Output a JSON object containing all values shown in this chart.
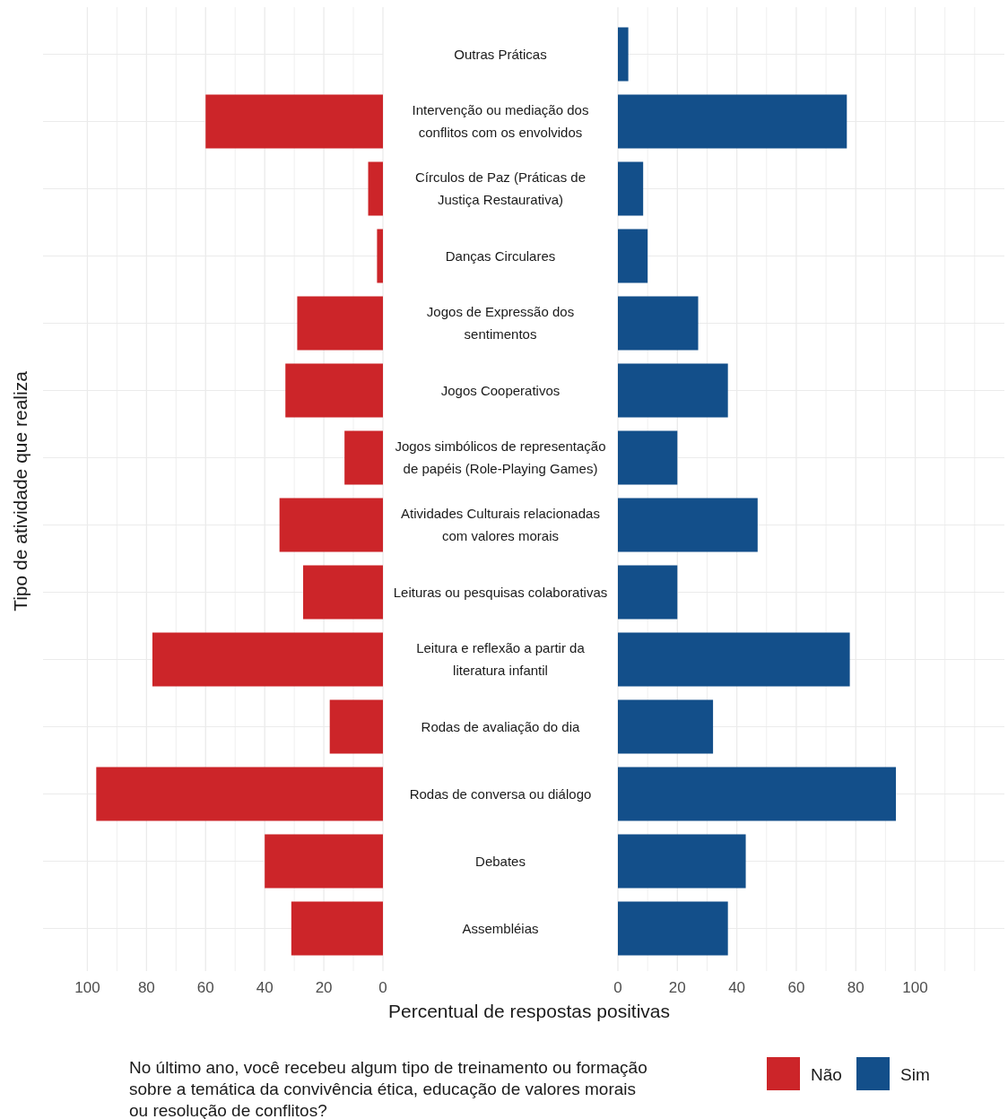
{
  "chart_data": [
    {
      "type": "bar",
      "orientation": "horizontal",
      "ylabel": "Tipo de atividade que realiza",
      "legend_title": "No último ano, você recebeu algum tipo de treinamento ou formação\nsobre a temática da convivência ética, educação de valores morais\nou resolução de conflitos?",
      "legend": "bottom",
      "grid": true,
      "categories": [
        "Outras Práticas",
        "Intervenção ou mediação dos\nconflitos com os envolvidos",
        "Círculos de Paz (Práticas de\nJustiça Restaurativa)",
        "Danças Circulares",
        "Jogos de Expressão dos\nsentimentos",
        "Jogos Cooperativos",
        "Jogos simbólicos de representação\nde papéis (Role-Playing Games)",
        "Atividades Culturais relacionadas\ncom valores morais",
        "Leituras ou pesquisas colaborativas",
        "Leitura e reflexão a partir da\nliteratura infantil",
        "Rodas de avaliação do dia",
        "Rodas de conversa ou diálogo",
        "Debates",
        "Assembléias"
      ],
      "xlim": [
        115,
        0
      ],
      "xticks": [
        100,
        {
          "value": 90,
          "label": null
        },
        80,
        {
          "value": 70,
          "label": null
        },
        60,
        {
          "value": 50,
          "label": null
        },
        40,
        {
          "value": 30,
          "label": null
        },
        20,
        {
          "value": 10,
          "label": null
        },
        0
      ],
      "series": [
        {
          "name": "Não",
          "color": "#cc2529",
          "values": [
            0,
            60,
            5,
            2,
            29,
            33,
            13,
            35,
            27,
            78,
            18,
            97,
            40,
            31
          ]
        }
      ]
    },
    {
      "type": "bar",
      "orientation": "horizontal",
      "xlabel": "Percentual de respostas positivas",
      "legend": "bottom",
      "grid": true,
      "categories": [
        null,
        null,
        null,
        null,
        null,
        null,
        null,
        null,
        null,
        null,
        null,
        null,
        null,
        null
      ],
      "xlim": [
        0,
        130
      ],
      "xticks": [
        0,
        {
          "value": 10,
          "label": null
        },
        20,
        {
          "value": 30,
          "label": null
        },
        40,
        {
          "value": 50,
          "label": null
        },
        60,
        {
          "value": 70,
          "label": null
        },
        80,
        {
          "value": 90,
          "label": null
        },
        100,
        {
          "value": 110,
          "label": null
        },
        {
          "value": 120,
          "label": null
        }
      ],
      "series": [
        {
          "name": "Sim",
          "color": "#134f8a",
          "values": [
            3.5,
            77,
            8.5,
            10,
            27,
            37,
            20,
            47,
            20,
            78,
            32,
            93.5,
            43,
            37
          ]
        }
      ]
    }
  ]
}
